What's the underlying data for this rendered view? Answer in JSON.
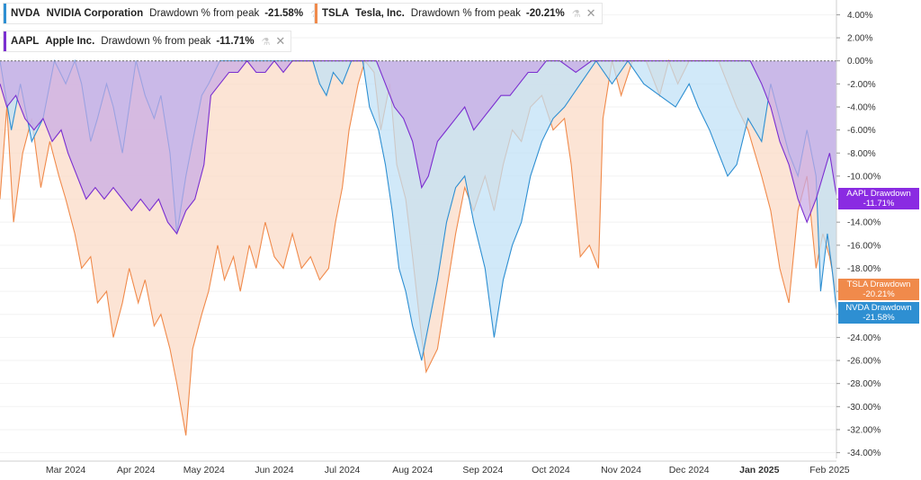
{
  "legend": [
    {
      "symbol": "NVDA",
      "name": "NVIDIA Corporation",
      "metric": "Drawdown % from peak",
      "value": "-21.58%",
      "color": "#2e8fd2"
    },
    {
      "symbol": "TSLA",
      "name": "Tesla, Inc.",
      "metric": "Drawdown % from peak",
      "value": "-20.21%",
      "color": "#f08a4b"
    },
    {
      "symbol": "AAPL",
      "name": "Apple Inc.",
      "metric": "Drawdown % from peak",
      "value": "-11.71%",
      "color": "#7b2fd0"
    }
  ],
  "end_labels": [
    {
      "title": "AAPL Drawdown",
      "value": "-11.71%",
      "color": "#8a2be2"
    },
    {
      "title": "TSLA Drawdown",
      "value": "-20.21%",
      "color": "#f08a4b"
    },
    {
      "title": "NVDA Drawdown",
      "value": "-21.58%",
      "color": "#2e8fd2"
    }
  ],
  "chart_data": {
    "type": "area",
    "y_axis_labels": [
      "4.00%",
      "2.00%",
      "0.00%",
      "-2.00%",
      "-4.00%",
      "-6.00%",
      "-8.00%",
      "-10.00%",
      "-12.00%",
      "-14.00%",
      "-16.00%",
      "-18.00%",
      "-20.00%",
      "-22.00%",
      "-24.00%",
      "-26.00%",
      "-28.00%",
      "-30.00%",
      "-32.00%",
      "-34.00%"
    ],
    "ylim": [
      -34.5,
      4.5
    ],
    "x_axis_labels": [
      "Mar 2024",
      "Apr 2024",
      "May 2024",
      "Jun 2024",
      "Jul 2024",
      "Aug 2024",
      "Sep 2024",
      "Oct 2024",
      "Nov 2024",
      "Dec 2024",
      "Jan 2025",
      "Feb 2025"
    ],
    "x_axis_bold": "Jan 2025",
    "x_range": [
      "2024-02-01",
      "2025-02-04"
    ],
    "series": [
      {
        "name": "TSLA",
        "color": "#f08a4b",
        "fill": "#fbd9c5",
        "points": [
          [
            "2024-02-01",
            -12
          ],
          [
            "2024-02-04",
            -4
          ],
          [
            "2024-02-07",
            -14
          ],
          [
            "2024-02-11",
            -8
          ],
          [
            "2024-02-15",
            -5
          ],
          [
            "2024-02-19",
            -11
          ],
          [
            "2024-02-23",
            -7
          ],
          [
            "2024-02-27",
            -10
          ],
          [
            "2024-03-01",
            -12
          ],
          [
            "2024-03-05",
            -15
          ],
          [
            "2024-03-08",
            -18
          ],
          [
            "2024-03-12",
            -17
          ],
          [
            "2024-03-15",
            -21
          ],
          [
            "2024-03-19",
            -20
          ],
          [
            "2024-03-22",
            -24
          ],
          [
            "2024-03-26",
            -21
          ],
          [
            "2024-03-29",
            -18
          ],
          [
            "2024-04-02",
            -21
          ],
          [
            "2024-04-05",
            -19
          ],
          [
            "2024-04-09",
            -23
          ],
          [
            "2024-04-12",
            -22
          ],
          [
            "2024-04-16",
            -25
          ],
          [
            "2024-04-19",
            -28
          ],
          [
            "2024-04-23",
            -32.5
          ],
          [
            "2024-04-26",
            -25
          ],
          [
            "2024-04-30",
            -22
          ],
          [
            "2024-05-03",
            -20
          ],
          [
            "2024-05-07",
            -16
          ],
          [
            "2024-05-10",
            -19
          ],
          [
            "2024-05-14",
            -17
          ],
          [
            "2024-05-17",
            -20
          ],
          [
            "2024-05-21",
            -16
          ],
          [
            "2024-05-24",
            -18
          ],
          [
            "2024-05-28",
            -14
          ],
          [
            "2024-06-01",
            -17
          ],
          [
            "2024-06-05",
            -18
          ],
          [
            "2024-06-09",
            -15
          ],
          [
            "2024-06-13",
            -18
          ],
          [
            "2024-06-17",
            -17
          ],
          [
            "2024-06-21",
            -19
          ],
          [
            "2024-06-25",
            -18
          ],
          [
            "2024-06-28",
            -14
          ],
          [
            "2024-07-01",
            -11
          ],
          [
            "2024-07-04",
            -6
          ],
          [
            "2024-07-08",
            -2
          ],
          [
            "2024-07-11",
            0
          ],
          [
            "2024-07-15",
            -1
          ],
          [
            "2024-07-18",
            -6
          ],
          [
            "2024-07-22",
            -2
          ],
          [
            "2024-07-25",
            -9
          ],
          [
            "2024-07-29",
            -12
          ],
          [
            "2024-08-01",
            -17
          ],
          [
            "2024-08-05",
            -24
          ],
          [
            "2024-08-07",
            -27
          ],
          [
            "2024-08-12",
            -25
          ],
          [
            "2024-08-16",
            -20
          ],
          [
            "2024-08-20",
            -15
          ],
          [
            "2024-08-24",
            -11
          ],
          [
            "2024-08-28",
            -13
          ],
          [
            "2024-09-02",
            -10
          ],
          [
            "2024-09-06",
            -13
          ],
          [
            "2024-09-10",
            -9
          ],
          [
            "2024-09-14",
            -6
          ],
          [
            "2024-09-18",
            -7
          ],
          [
            "2024-09-22",
            -4
          ],
          [
            "2024-09-27",
            -3
          ],
          [
            "2024-10-02",
            -6
          ],
          [
            "2024-10-07",
            -5
          ],
          [
            "2024-10-10",
            -9
          ],
          [
            "2024-10-14",
            -17
          ],
          [
            "2024-10-18",
            -16
          ],
          [
            "2024-10-22",
            -18
          ],
          [
            "2024-10-24",
            -5
          ],
          [
            "2024-10-28",
            0
          ],
          [
            "2024-11-01",
            -3
          ],
          [
            "2024-11-06",
            0
          ],
          [
            "2024-11-12",
            0
          ],
          [
            "2024-11-18",
            -3
          ],
          [
            "2024-11-22",
            0
          ],
          [
            "2024-11-26",
            -2
          ],
          [
            "2024-12-01",
            0
          ],
          [
            "2024-12-08",
            0
          ],
          [
            "2024-12-14",
            0
          ],
          [
            "2024-12-18",
            -2
          ],
          [
            "2024-12-22",
            -4
          ],
          [
            "2024-12-27",
            -6
          ],
          [
            "2025-01-02",
            -10
          ],
          [
            "2025-01-06",
            -13
          ],
          [
            "2025-01-10",
            -18
          ],
          [
            "2025-01-14",
            -21
          ],
          [
            "2025-01-18",
            -13
          ],
          [
            "2025-01-22",
            -10
          ],
          [
            "2025-01-26",
            -18
          ],
          [
            "2025-01-29",
            -15
          ],
          [
            "2025-02-01",
            -17
          ],
          [
            "2025-02-04",
            -20.2
          ]
        ]
      },
      {
        "name": "NVDA",
        "color": "#2e8fd2",
        "fill": "#bfe0f6",
        "points": [
          [
            "2024-02-01",
            0
          ],
          [
            "2024-02-06",
            -6
          ],
          [
            "2024-02-10",
            -2
          ],
          [
            "2024-02-15",
            -7
          ],
          [
            "2024-02-20",
            -5
          ],
          [
            "2024-02-25",
            0
          ],
          [
            "2024-03-01",
            -2
          ],
          [
            "2024-03-05",
            0
          ],
          [
            "2024-03-08",
            -2
          ],
          [
            "2024-03-12",
            -7
          ],
          [
            "2024-03-15",
            -5
          ],
          [
            "2024-03-19",
            -2
          ],
          [
            "2024-03-22",
            -4
          ],
          [
            "2024-03-26",
            -8
          ],
          [
            "2024-03-29",
            -4
          ],
          [
            "2024-04-01",
            0
          ],
          [
            "2024-04-05",
            -3
          ],
          [
            "2024-04-09",
            -5
          ],
          [
            "2024-04-12",
            -3
          ],
          [
            "2024-04-16",
            -8
          ],
          [
            "2024-04-19",
            -15
          ],
          [
            "2024-04-23",
            -10
          ],
          [
            "2024-04-26",
            -7
          ],
          [
            "2024-04-30",
            -3
          ],
          [
            "2024-05-03",
            -2
          ],
          [
            "2024-05-08",
            0
          ],
          [
            "2024-05-13",
            0
          ],
          [
            "2024-05-20",
            0
          ],
          [
            "2024-05-27",
            0
          ],
          [
            "2024-06-05",
            0
          ],
          [
            "2024-06-12",
            0
          ],
          [
            "2024-06-18",
            0
          ],
          [
            "2024-06-21",
            -2
          ],
          [
            "2024-06-24",
            -3
          ],
          [
            "2024-06-27",
            -1
          ],
          [
            "2024-07-01",
            -2
          ],
          [
            "2024-07-05",
            0
          ],
          [
            "2024-07-10",
            0
          ],
          [
            "2024-07-13",
            -4
          ],
          [
            "2024-07-17",
            -6
          ],
          [
            "2024-07-20",
            -9
          ],
          [
            "2024-07-23",
            -13
          ],
          [
            "2024-07-26",
            -18
          ],
          [
            "2024-07-29",
            -20
          ],
          [
            "2024-08-01",
            -23
          ],
          [
            "2024-08-05",
            -26
          ],
          [
            "2024-08-07",
            -24
          ],
          [
            "2024-08-12",
            -19
          ],
          [
            "2024-08-16",
            -14
          ],
          [
            "2024-08-20",
            -11
          ],
          [
            "2024-08-24",
            -10
          ],
          [
            "2024-08-28",
            -14
          ],
          [
            "2024-09-02",
            -18
          ],
          [
            "2024-09-06",
            -24
          ],
          [
            "2024-09-10",
            -19
          ],
          [
            "2024-09-14",
            -16
          ],
          [
            "2024-09-18",
            -14
          ],
          [
            "2024-09-22",
            -10
          ],
          [
            "2024-09-27",
            -7
          ],
          [
            "2024-10-02",
            -5
          ],
          [
            "2024-10-07",
            -4
          ],
          [
            "2024-10-14",
            -2
          ],
          [
            "2024-10-21",
            0
          ],
          [
            "2024-10-28",
            -2
          ],
          [
            "2024-11-04",
            0
          ],
          [
            "2024-11-11",
            -2
          ],
          [
            "2024-11-18",
            -3
          ],
          [
            "2024-11-25",
            -4
          ],
          [
            "2024-12-01",
            -2
          ],
          [
            "2024-12-05",
            -4
          ],
          [
            "2024-12-10",
            -6
          ],
          [
            "2024-12-14",
            -8
          ],
          [
            "2024-12-18",
            -10
          ],
          [
            "2024-12-22",
            -9
          ],
          [
            "2024-12-27",
            -5
          ],
          [
            "2025-01-02",
            -7
          ],
          [
            "2025-01-06",
            -2
          ],
          [
            "2025-01-10",
            -5
          ],
          [
            "2025-01-14",
            -8
          ],
          [
            "2025-01-18",
            -10
          ],
          [
            "2025-01-22",
            -6
          ],
          [
            "2025-01-26",
            -10
          ],
          [
            "2025-01-28",
            -20
          ],
          [
            "2025-01-31",
            -15
          ],
          [
            "2025-02-02",
            -18
          ],
          [
            "2025-02-04",
            -21.6
          ]
        ]
      },
      {
        "name": "AAPL",
        "color": "#7b2fd0",
        "fill": "#c7a9e6",
        "points": [
          [
            "2024-02-01",
            -2
          ],
          [
            "2024-02-04",
            -4
          ],
          [
            "2024-02-08",
            -3
          ],
          [
            "2024-02-12",
            -5
          ],
          [
            "2024-02-16",
            -6
          ],
          [
            "2024-02-20",
            -5
          ],
          [
            "2024-02-24",
            -7
          ],
          [
            "2024-02-28",
            -6
          ],
          [
            "2024-03-02",
            -8
          ],
          [
            "2024-03-06",
            -10
          ],
          [
            "2024-03-10",
            -12
          ],
          [
            "2024-03-14",
            -11
          ],
          [
            "2024-03-18",
            -12
          ],
          [
            "2024-03-22",
            -11
          ],
          [
            "2024-03-26",
            -12
          ],
          [
            "2024-03-30",
            -13
          ],
          [
            "2024-04-03",
            -12
          ],
          [
            "2024-04-07",
            -13
          ],
          [
            "2024-04-11",
            -12
          ],
          [
            "2024-04-15",
            -14
          ],
          [
            "2024-04-19",
            -15
          ],
          [
            "2024-04-23",
            -13
          ],
          [
            "2024-04-27",
            -12
          ],
          [
            "2024-05-01",
            -9
          ],
          [
            "2024-05-04",
            -3
          ],
          [
            "2024-05-08",
            -2
          ],
          [
            "2024-05-12",
            -1
          ],
          [
            "2024-05-16",
            -1
          ],
          [
            "2024-05-20",
            0
          ],
          [
            "2024-05-24",
            -1
          ],
          [
            "2024-05-28",
            -1
          ],
          [
            "2024-06-01",
            0
          ],
          [
            "2024-06-05",
            -1
          ],
          [
            "2024-06-09",
            0
          ],
          [
            "2024-06-13",
            0
          ],
          [
            "2024-06-20",
            0
          ],
          [
            "2024-06-28",
            0
          ],
          [
            "2024-07-05",
            0
          ],
          [
            "2024-07-12",
            0
          ],
          [
            "2024-07-16",
            0
          ],
          [
            "2024-07-20",
            -2
          ],
          [
            "2024-07-24",
            -4
          ],
          [
            "2024-07-28",
            -5
          ],
          [
            "2024-08-01",
            -7
          ],
          [
            "2024-08-05",
            -11
          ],
          [
            "2024-08-08",
            -10
          ],
          [
            "2024-08-12",
            -7
          ],
          [
            "2024-08-16",
            -6
          ],
          [
            "2024-08-20",
            -5
          ],
          [
            "2024-08-24",
            -4
          ],
          [
            "2024-08-28",
            -6
          ],
          [
            "2024-09-01",
            -5
          ],
          [
            "2024-09-05",
            -4
          ],
          [
            "2024-09-09",
            -3
          ],
          [
            "2024-09-13",
            -3
          ],
          [
            "2024-09-17",
            -2
          ],
          [
            "2024-09-21",
            -1
          ],
          [
            "2024-09-25",
            -1
          ],
          [
            "2024-09-29",
            0
          ],
          [
            "2024-10-05",
            0
          ],
          [
            "2024-10-12",
            -1
          ],
          [
            "2024-10-19",
            0
          ],
          [
            "2024-10-26",
            0
          ],
          [
            "2024-11-02",
            0
          ],
          [
            "2024-11-09",
            0
          ],
          [
            "2024-11-16",
            0
          ],
          [
            "2024-11-23",
            0
          ],
          [
            "2024-11-30",
            0
          ],
          [
            "2024-12-07",
            0
          ],
          [
            "2024-12-14",
            0
          ],
          [
            "2024-12-21",
            0
          ],
          [
            "2024-12-28",
            0
          ],
          [
            "2025-01-02",
            -2
          ],
          [
            "2025-01-06",
            -4
          ],
          [
            "2025-01-10",
            -7
          ],
          [
            "2025-01-14",
            -9
          ],
          [
            "2025-01-18",
            -12
          ],
          [
            "2025-01-22",
            -14
          ],
          [
            "2025-01-26",
            -12
          ],
          [
            "2025-01-29",
            -10
          ],
          [
            "2025-02-01",
            -8
          ],
          [
            "2025-02-04",
            -11.7
          ]
        ]
      }
    ]
  }
}
